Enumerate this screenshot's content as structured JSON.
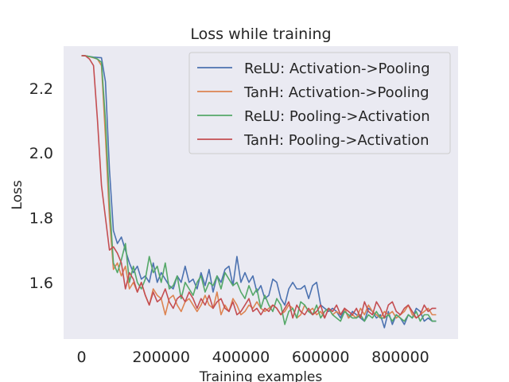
{
  "chart_data": {
    "type": "line",
    "title": "Loss while training",
    "xlabel": "Training examples",
    "ylabel": "Loss",
    "xlim": [
      -45000,
      945000
    ],
    "ylim": [
      1.425,
      2.33
    ],
    "xticks": [
      0,
      200000,
      400000,
      600000,
      800000
    ],
    "xtick_labels": [
      "0",
      "200000",
      "400000",
      "600000",
      "800000"
    ],
    "yticks": [
      1.6,
      1.8,
      2.0,
      2.2
    ],
    "ytick_labels": [
      "1.6",
      "1.8",
      "2.0",
      "2.2"
    ],
    "grid": false,
    "legend_position": "top-right",
    "x": [
      0,
      10000,
      20000,
      30000,
      40000,
      50000,
      60000,
      70000,
      80000,
      90000,
      100000,
      110000,
      120000,
      130000,
      140000,
      150000,
      160000,
      170000,
      180000,
      190000,
      200000,
      210000,
      220000,
      230000,
      240000,
      250000,
      260000,
      270000,
      280000,
      290000,
      300000,
      310000,
      320000,
      330000,
      340000,
      350000,
      360000,
      370000,
      380000,
      390000,
      400000,
      410000,
      420000,
      430000,
      440000,
      450000,
      460000,
      470000,
      480000,
      490000,
      500000,
      510000,
      520000,
      530000,
      540000,
      550000,
      560000,
      570000,
      580000,
      590000,
      600000,
      610000,
      620000,
      630000,
      640000,
      650000,
      660000,
      670000,
      680000,
      690000,
      700000,
      710000,
      720000,
      730000,
      740000,
      750000,
      760000,
      770000,
      780000,
      790000,
      800000,
      810000,
      820000,
      830000,
      840000,
      850000,
      860000,
      870000,
      880000,
      890000
    ],
    "series": [
      {
        "name": "ReLU: Activation->Pooling",
        "color": "#4c72b0",
        "values": [
          2.301,
          2.3,
          2.298,
          2.296,
          2.295,
          2.294,
          2.22,
          1.95,
          1.76,
          1.72,
          1.74,
          1.7,
          1.66,
          1.63,
          1.65,
          1.61,
          1.62,
          1.6,
          1.66,
          1.6,
          1.63,
          1.61,
          1.59,
          1.58,
          1.62,
          1.6,
          1.65,
          1.6,
          1.61,
          1.58,
          1.63,
          1.59,
          1.64,
          1.57,
          1.62,
          1.6,
          1.64,
          1.65,
          1.59,
          1.68,
          1.6,
          1.63,
          1.6,
          1.62,
          1.57,
          1.59,
          1.55,
          1.56,
          1.61,
          1.6,
          1.55,
          1.53,
          1.58,
          1.6,
          1.58,
          1.58,
          1.59,
          1.55,
          1.59,
          1.6,
          1.53,
          1.52,
          1.51,
          1.52,
          1.51,
          1.49,
          1.52,
          1.49,
          1.51,
          1.5,
          1.49,
          1.48,
          1.52,
          1.51,
          1.49,
          1.5,
          1.46,
          1.51,
          1.47,
          1.5,
          1.49,
          1.47,
          1.5,
          1.49,
          1.52,
          1.51,
          1.48,
          1.49,
          1.48,
          1.48
        ]
      },
      {
        "name": "TanH: Activation->Pooling",
        "color": "#dd8452",
        "values": [
          2.301,
          2.3,
          2.297,
          2.294,
          2.29,
          2.27,
          2.05,
          1.8,
          1.64,
          1.66,
          1.62,
          1.65,
          1.58,
          1.6,
          1.57,
          1.6,
          1.56,
          1.53,
          1.58,
          1.56,
          1.55,
          1.5,
          1.55,
          1.56,
          1.53,
          1.51,
          1.54,
          1.55,
          1.53,
          1.51,
          1.53,
          1.56,
          1.53,
          1.52,
          1.57,
          1.5,
          1.53,
          1.51,
          1.55,
          1.53,
          1.5,
          1.51,
          1.53,
          1.52,
          1.54,
          1.52,
          1.51,
          1.52,
          1.53,
          1.52,
          1.5,
          1.51,
          1.53,
          1.52,
          1.49,
          1.5,
          1.53,
          1.51,
          1.52,
          1.5,
          1.51,
          1.49,
          1.52,
          1.5,
          1.51,
          1.5,
          1.52,
          1.49,
          1.5,
          1.49,
          1.52,
          1.5,
          1.53,
          1.51,
          1.5,
          1.49,
          1.51,
          1.5,
          1.51,
          1.49,
          1.5,
          1.51,
          1.53,
          1.5,
          1.49,
          1.5,
          1.51,
          1.52,
          1.5,
          1.5
        ]
      },
      {
        "name": "ReLU: Pooling->Activation",
        "color": "#55a868",
        "values": [
          2.301,
          2.3,
          2.298,
          2.295,
          2.29,
          2.28,
          2.1,
          1.85,
          1.66,
          1.63,
          1.67,
          1.72,
          1.6,
          1.65,
          1.6,
          1.58,
          1.61,
          1.68,
          1.63,
          1.65,
          1.6,
          1.66,
          1.58,
          1.59,
          1.62,
          1.55,
          1.6,
          1.58,
          1.56,
          1.6,
          1.62,
          1.57,
          1.6,
          1.59,
          1.62,
          1.58,
          1.63,
          1.61,
          1.59,
          1.6,
          1.57,
          1.55,
          1.59,
          1.56,
          1.58,
          1.52,
          1.56,
          1.53,
          1.51,
          1.55,
          1.53,
          1.47,
          1.51,
          1.52,
          1.49,
          1.54,
          1.53,
          1.51,
          1.5,
          1.53,
          1.49,
          1.51,
          1.52,
          1.5,
          1.49,
          1.48,
          1.51,
          1.5,
          1.49,
          1.49,
          1.5,
          1.48,
          1.5,
          1.49,
          1.51,
          1.49,
          1.49,
          1.5,
          1.48,
          1.5,
          1.49,
          1.48,
          1.5,
          1.49,
          1.51,
          1.48,
          1.5,
          1.5,
          1.48,
          1.48
        ]
      },
      {
        "name": "TanH: Pooling->Activation",
        "color": "#c44e52",
        "values": [
          2.301,
          2.3,
          2.29,
          2.27,
          2.1,
          1.9,
          1.8,
          1.7,
          1.71,
          1.69,
          1.66,
          1.58,
          1.63,
          1.61,
          1.57,
          1.6,
          1.56,
          1.53,
          1.57,
          1.54,
          1.55,
          1.58,
          1.54,
          1.52,
          1.55,
          1.56,
          1.54,
          1.57,
          1.55,
          1.52,
          1.55,
          1.53,
          1.56,
          1.52,
          1.54,
          1.55,
          1.52,
          1.51,
          1.54,
          1.5,
          1.51,
          1.53,
          1.55,
          1.51,
          1.52,
          1.5,
          1.52,
          1.51,
          1.53,
          1.52,
          1.5,
          1.52,
          1.54,
          1.49,
          1.53,
          1.51,
          1.5,
          1.52,
          1.5,
          1.51,
          1.53,
          1.49,
          1.52,
          1.51,
          1.53,
          1.5,
          1.52,
          1.51,
          1.5,
          1.52,
          1.49,
          1.54,
          1.51,
          1.5,
          1.54,
          1.52,
          1.49,
          1.53,
          1.54,
          1.51,
          1.5,
          1.52,
          1.53,
          1.51,
          1.49,
          1.5,
          1.53,
          1.51,
          1.52,
          1.52
        ]
      }
    ]
  }
}
